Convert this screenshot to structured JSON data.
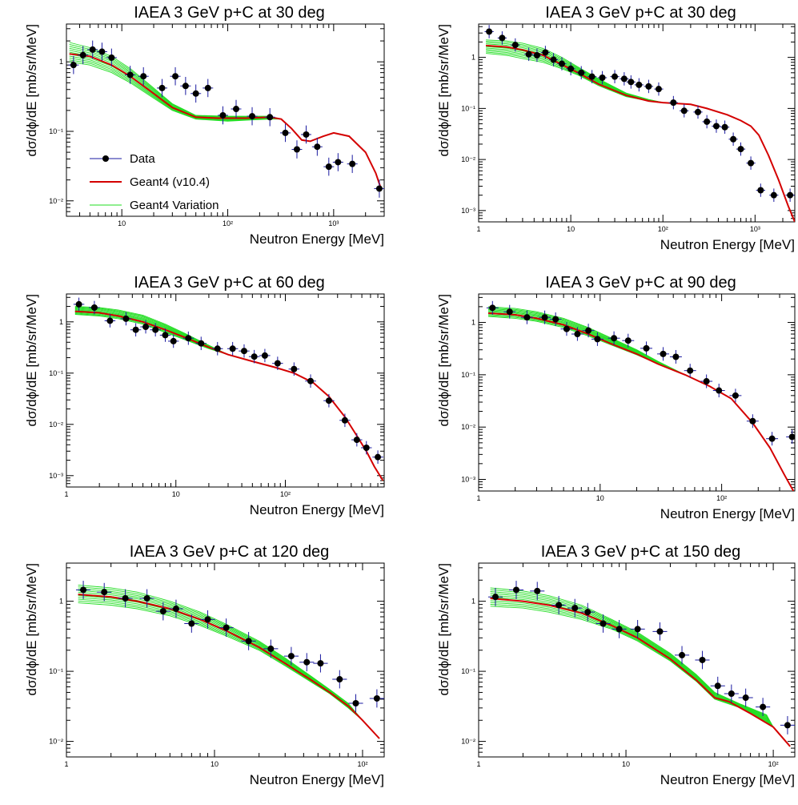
{
  "legend_labels": [
    "Data",
    "Geant4 (v10.4)",
    "Geant4 Variation"
  ],
  "colors": {
    "data": "#000000",
    "data_err": "#1a1aa0",
    "geant4": "#d40000",
    "variation": "#22dd22"
  },
  "chart_data": [
    {
      "type": "scatter",
      "title": "IAEA 3 GeV p+C at 30 deg",
      "xlabel": "Neutron Energy [MeV]",
      "ylabel": "dσ/dϕ/dE [mb/sr/MeV]",
      "xscale": "log",
      "yscale": "log",
      "xlim": [
        3,
        3000
      ],
      "ylim": [
        0.006,
        3.5
      ],
      "xticks": [
        10,
        100,
        1000
      ],
      "xtick_labels": [
        "10",
        "10²",
        "10³"
      ],
      "yticks": [
        0.01,
        0.1,
        1
      ],
      "ytick_labels": [
        "10⁻²",
        "10⁻¹",
        "1"
      ],
      "legend": true,
      "legend_position": "lower-left",
      "series": [
        {
          "name": "Data",
          "x": [
            3.5,
            4.3,
            5.3,
            6.5,
            8,
            12,
            16,
            24,
            32,
            40,
            50,
            65,
            90,
            120,
            170,
            250,
            350,
            450,
            550,
            700,
            900,
            1100,
            1500,
            2700
          ],
          "y": [
            0.9,
            1.25,
            1.5,
            1.4,
            1.15,
            0.65,
            0.62,
            0.42,
            0.62,
            0.45,
            0.35,
            0.42,
            0.17,
            0.21,
            0.165,
            0.16,
            0.095,
            0.055,
            0.09,
            0.06,
            0.031,
            0.036,
            0.034,
            0.015
          ]
        },
        {
          "name": "Geant4 (v10.4)",
          "x": [
            3.2,
            5,
            8,
            12,
            20,
            30,
            50,
            80,
            150,
            250,
            320,
            400,
            500,
            600,
            800,
            1000,
            1400,
            2000,
            2500,
            2800
          ],
          "y": [
            1.3,
            1.2,
            0.9,
            0.62,
            0.35,
            0.22,
            0.16,
            0.155,
            0.155,
            0.16,
            0.15,
            0.11,
            0.075,
            0.072,
            0.085,
            0.095,
            0.085,
            0.05,
            0.025,
            0.015
          ]
        }
      ],
      "variation_band": {
        "x": [
          3.2,
          5,
          8,
          12,
          20,
          30,
          50,
          100,
          150,
          250
        ],
        "low": [
          1.0,
          0.9,
          0.7,
          0.5,
          0.3,
          0.2,
          0.15,
          0.14,
          0.145,
          0.15
        ],
        "high": [
          1.9,
          1.6,
          1.2,
          0.8,
          0.42,
          0.25,
          0.17,
          0.165,
          0.165,
          0.165
        ]
      }
    },
    {
      "type": "scatter",
      "title": "IAEA 3 GeV p+C at 30 deg",
      "xlabel": "Neutron Energy [MeV]",
      "ylabel": "dσ/dϕ/dE [mb/sr/MeV]",
      "xscale": "log",
      "yscale": "log",
      "xlim": [
        1,
        2700
      ],
      "ylim": [
        0.0006,
        4.5
      ],
      "xticks": [
        1,
        10,
        100,
        1000
      ],
      "xtick_labels": [
        "1",
        "10",
        "10²",
        "10³"
      ],
      "yticks": [
        0.001,
        0.01,
        0.1,
        1
      ],
      "ytick_labels": [
        "10⁻³",
        "10⁻²",
        "10⁻¹",
        "1"
      ],
      "legend": false,
      "series": [
        {
          "name": "Data",
          "x": [
            1.3,
            1.8,
            2.5,
            3.5,
            4.3,
            5.3,
            6.5,
            8,
            10,
            13,
            17,
            22,
            30,
            38,
            45,
            55,
            70,
            90,
            130,
            170,
            240,
            300,
            380,
            470,
            580,
            700,
            900,
            1150,
            1600,
            2400
          ],
          "y": [
            3.2,
            2.4,
            1.75,
            1.15,
            1.1,
            1.25,
            0.9,
            0.75,
            0.6,
            0.5,
            0.42,
            0.4,
            0.42,
            0.38,
            0.33,
            0.29,
            0.27,
            0.24,
            0.13,
            0.09,
            0.085,
            0.055,
            0.045,
            0.043,
            0.025,
            0.016,
            0.0085,
            0.0025,
            0.002,
            0.002
          ]
        },
        {
          "name": "Geant4 (v10.4)",
          "x": [
            1.2,
            2,
            3,
            5,
            8,
            12,
            20,
            40,
            70,
            100,
            200,
            300,
            500,
            700,
            900,
            1100,
            1400,
            1800,
            2300,
            2700
          ],
          "y": [
            1.7,
            1.6,
            1.4,
            1.1,
            0.72,
            0.5,
            0.3,
            0.18,
            0.14,
            0.13,
            0.12,
            0.1,
            0.075,
            0.058,
            0.045,
            0.03,
            0.012,
            0.004,
            0.0012,
            0.0006
          ]
        }
      ],
      "variation_band": {
        "x": [
          1.2,
          2,
          3,
          5,
          8,
          12,
          20,
          40,
          70
        ],
        "low": [
          1.2,
          1.1,
          0.95,
          0.8,
          0.6,
          0.45,
          0.28,
          0.17,
          0.14
        ],
        "high": [
          2.2,
          2.1,
          1.9,
          1.5,
          1.0,
          0.65,
          0.38,
          0.2,
          0.15
        ]
      }
    },
    {
      "type": "scatter",
      "title": "IAEA 3 GeV p+C at 60 deg",
      "xlabel": "Neutron Energy [MeV]",
      "ylabel": "dσ/dϕ/dE [mb/sr/MeV]",
      "xscale": "log",
      "yscale": "log",
      "xlim": [
        1,
        800
      ],
      "ylim": [
        0.0006,
        3.5
      ],
      "xticks": [
        1,
        10,
        100
      ],
      "xtick_labels": [
        "1",
        "10",
        "10²"
      ],
      "yticks": [
        0.001,
        0.01,
        0.1,
        1
      ],
      "ytick_labels": [
        "10⁻³",
        "10⁻²",
        "10⁻¹",
        "1"
      ],
      "legend": false,
      "series": [
        {
          "name": "Data",
          "x": [
            1.3,
            1.8,
            2.5,
            3.5,
            4.3,
            5.3,
            6.5,
            8,
            9.5,
            13,
            17,
            24,
            33,
            42,
            52,
            65,
            85,
            120,
            170,
            250,
            350,
            450,
            550,
            700
          ],
          "y": [
            2.2,
            1.9,
            1.05,
            1.15,
            0.7,
            0.8,
            0.7,
            0.55,
            0.42,
            0.48,
            0.38,
            0.3,
            0.3,
            0.27,
            0.21,
            0.22,
            0.155,
            0.12,
            0.07,
            0.029,
            0.012,
            0.005,
            0.0035,
            0.0023
          ]
        },
        {
          "name": "Geant4 (v10.4)",
          "x": [
            1.2,
            2,
            3,
            5,
            8,
            12,
            20,
            30,
            50,
            80,
            120,
            180,
            250,
            350,
            450,
            550,
            650,
            780
          ],
          "y": [
            1.6,
            1.5,
            1.3,
            1.0,
            0.7,
            0.5,
            0.32,
            0.23,
            0.17,
            0.13,
            0.1,
            0.065,
            0.035,
            0.014,
            0.006,
            0.003,
            0.0015,
            0.0008
          ]
        }
      ],
      "variation_band": {
        "x": [
          1.2,
          2,
          3,
          5,
          8,
          12,
          20
        ],
        "low": [
          1.4,
          1.3,
          1.15,
          0.9,
          0.62,
          0.45,
          0.3
        ],
        "high": [
          2.0,
          1.9,
          1.7,
          1.35,
          0.9,
          0.6,
          0.35
        ]
      }
    },
    {
      "type": "scatter",
      "title": "IAEA 3 GeV p+C at 90 deg",
      "xlabel": "Neutron Energy [MeV]",
      "ylabel": "dσ/dϕ/dE [mb/sr/MeV]",
      "xscale": "log",
      "yscale": "log",
      "xlim": [
        1,
        400
      ],
      "ylim": [
        0.0006,
        3.5
      ],
      "xticks": [
        1,
        10,
        100
      ],
      "xtick_labels": [
        "1",
        "10",
        "10²"
      ],
      "yticks": [
        0.001,
        0.01,
        0.1,
        1
      ],
      "ytick_labels": [
        "10⁻³",
        "10⁻²",
        "10⁻¹",
        "1"
      ],
      "legend": false,
      "series": [
        {
          "name": "Data",
          "x": [
            1.3,
            1.8,
            2.5,
            3.5,
            4.3,
            5.3,
            6.5,
            8,
            9.5,
            13,
            17,
            24,
            33,
            42,
            55,
            75,
            95,
            130,
            180,
            260,
            380
          ],
          "y": [
            1.9,
            1.6,
            1.25,
            1.25,
            1.15,
            0.75,
            0.6,
            0.7,
            0.48,
            0.5,
            0.45,
            0.32,
            0.25,
            0.22,
            0.12,
            0.075,
            0.05,
            0.04,
            0.013,
            0.006,
            0.0065
          ]
        },
        {
          "name": "Geant4 (v10.4)",
          "x": [
            1.2,
            2,
            3,
            5,
            8,
            12,
            20,
            30,
            50,
            80,
            120,
            180,
            250,
            330,
            390
          ],
          "y": [
            1.5,
            1.4,
            1.2,
            0.9,
            0.6,
            0.4,
            0.25,
            0.16,
            0.1,
            0.06,
            0.035,
            0.012,
            0.004,
            0.0012,
            0.0006
          ]
        }
      ],
      "variation_band": {
        "x": [
          1.2,
          2,
          3,
          5,
          8,
          12,
          20,
          30
        ],
        "low": [
          1.3,
          1.2,
          1.05,
          0.8,
          0.55,
          0.38,
          0.24,
          0.16
        ],
        "high": [
          2.0,
          1.85,
          1.6,
          1.2,
          0.8,
          0.52,
          0.3,
          0.18
        ]
      }
    },
    {
      "type": "scatter",
      "title": "IAEA 3 GeV p+C at 120 deg",
      "xlabel": "Neutron Energy [MeV]",
      "ylabel": "dσ/dϕ/dE [mb/sr/MeV]",
      "xscale": "log",
      "yscale": "log",
      "xlim": [
        1,
        140
      ],
      "ylim": [
        0.006,
        3.5
      ],
      "xticks": [
        1,
        10,
        100
      ],
      "xtick_labels": [
        "1",
        "10",
        "10²"
      ],
      "yticks": [
        0.01,
        0.1,
        1
      ],
      "ytick_labels": [
        "10⁻²",
        "10⁻¹",
        "1"
      ],
      "legend": false,
      "series": [
        {
          "name": "Data",
          "x": [
            1.3,
            1.8,
            2.5,
            3.5,
            4.5,
            5.5,
            7,
            9,
            12,
            17,
            24,
            33,
            42,
            52,
            70,
            90,
            125
          ],
          "y": [
            1.45,
            1.35,
            1.1,
            1.1,
            0.72,
            0.78,
            0.48,
            0.55,
            0.42,
            0.27,
            0.21,
            0.165,
            0.135,
            0.13,
            0.077,
            0.035,
            0.041
          ]
        },
        {
          "name": "Geant4 (v10.4)",
          "x": [
            1.2,
            2,
            3,
            5,
            8,
            12,
            20,
            30,
            45,
            60,
            80,
            100,
            130
          ],
          "y": [
            1.25,
            1.15,
            1.0,
            0.78,
            0.55,
            0.38,
            0.22,
            0.13,
            0.075,
            0.05,
            0.032,
            0.02,
            0.011
          ]
        }
      ],
      "variation_band": {
        "x": [
          1.2,
          2,
          3,
          5,
          8,
          12,
          20,
          30,
          45,
          60,
          80
        ],
        "low": [
          0.95,
          0.88,
          0.78,
          0.62,
          0.45,
          0.32,
          0.2,
          0.12,
          0.07,
          0.048,
          0.03
        ],
        "high": [
          1.7,
          1.55,
          1.35,
          1.0,
          0.7,
          0.47,
          0.27,
          0.155,
          0.085,
          0.055,
          0.035
        ]
      }
    },
    {
      "type": "scatter",
      "title": "IAEA 3 GeV p+C at 150 deg",
      "xlabel": "Neutron Energy [MeV]",
      "ylabel": "dσ/dϕ/dE [mb/sr/MeV]",
      "xscale": "log",
      "yscale": "log",
      "xlim": [
        1,
        140
      ],
      "ylim": [
        0.006,
        3.5
      ],
      "xticks": [
        1,
        10,
        100
      ],
      "xtick_labels": [
        "1",
        "10",
        "10²"
      ],
      "yticks": [
        0.01,
        0.1,
        1
      ],
      "ytick_labels": [
        "10⁻²",
        "10⁻¹",
        "1"
      ],
      "legend": false,
      "series": [
        {
          "name": "Data",
          "x": [
            1.3,
            1.8,
            2.5,
            3.5,
            4.5,
            5.5,
            7,
            9,
            12,
            17,
            24,
            33,
            42,
            52,
            65,
            85,
            125
          ],
          "y": [
            1.15,
            1.45,
            1.4,
            0.88,
            0.8,
            0.7,
            0.48,
            0.4,
            0.4,
            0.37,
            0.17,
            0.145,
            0.062,
            0.048,
            0.042,
            0.031,
            0.017
          ]
        },
        {
          "name": "Geant4 (v10.4)",
          "x": [
            1.2,
            2,
            3,
            5,
            8,
            12,
            20,
            30,
            40,
            50,
            70,
            100,
            130
          ],
          "y": [
            1.1,
            1.0,
            0.88,
            0.68,
            0.45,
            0.3,
            0.15,
            0.075,
            0.042,
            0.037,
            0.025,
            0.016,
            0.0085
          ]
        }
      ],
      "variation_band": {
        "x": [
          1.2,
          2,
          3,
          5,
          8,
          12,
          20,
          30,
          40,
          60,
          90
        ],
        "low": [
          0.85,
          0.8,
          0.7,
          0.55,
          0.4,
          0.27,
          0.14,
          0.072,
          0.04,
          0.03,
          0.019
        ],
        "high": [
          1.55,
          1.4,
          1.2,
          0.88,
          0.55,
          0.36,
          0.18,
          0.09,
          0.05,
          0.034,
          0.024
        ]
      }
    }
  ]
}
